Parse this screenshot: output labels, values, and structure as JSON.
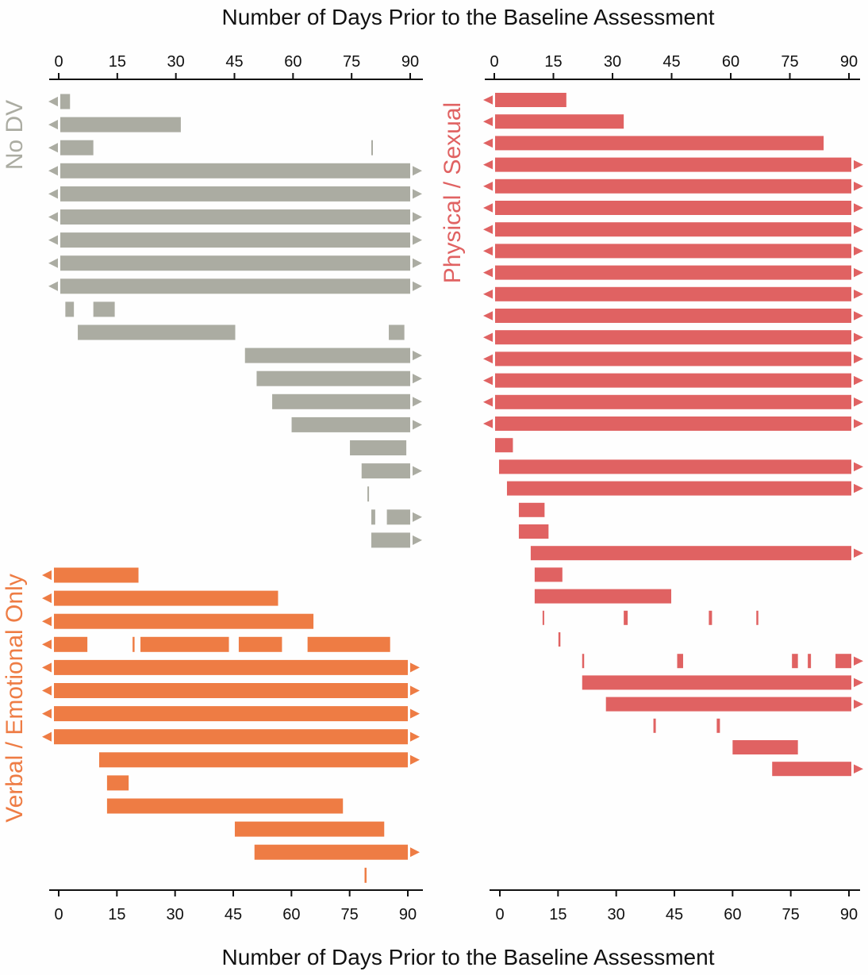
{
  "chart_data": {
    "type": "bar",
    "title_top": "Number of Days Prior to the Baseline Assessment",
    "title_bottom": "Number of Days Prior to the Baseline Assessment",
    "xlim": [
      0,
      90
    ],
    "ticks": [
      0,
      15,
      30,
      45,
      60,
      75,
      90
    ],
    "colors": {
      "no_dv": "#abaca2",
      "verbal": "#ee7c44",
      "physical": "#e06262"
    },
    "groups": [
      {
        "key": "no_dv",
        "label": "No DV",
        "color": "#abaca2",
        "participants": [
          {
            "segments": [
              [
                0,
                2.5
              ]
            ],
            "left_arrow": true,
            "right_arrow": false
          },
          {
            "segments": [
              [
                0,
                31
              ]
            ],
            "left_arrow": true,
            "right_arrow": false
          },
          {
            "segments": [
              [
                0,
                8.5
              ],
              [
                80,
                80.3
              ]
            ],
            "left_arrow": true,
            "right_arrow": false
          },
          {
            "segments": [
              [
                0,
                90
              ]
            ],
            "left_arrow": true,
            "right_arrow": true
          },
          {
            "segments": [
              [
                0,
                90
              ]
            ],
            "left_arrow": true,
            "right_arrow": true
          },
          {
            "segments": [
              [
                0,
                90
              ]
            ],
            "left_arrow": true,
            "right_arrow": true
          },
          {
            "segments": [
              [
                0,
                90
              ]
            ],
            "left_arrow": true,
            "right_arrow": true
          },
          {
            "segments": [
              [
                0,
                90
              ]
            ],
            "left_arrow": true,
            "right_arrow": true
          },
          {
            "segments": [
              [
                0,
                90
              ]
            ],
            "left_arrow": true,
            "right_arrow": true
          },
          {
            "segments": [
              [
                1.3,
                3.5
              ],
              [
                8.5,
                14
              ]
            ],
            "left_arrow": false,
            "right_arrow": false
          },
          {
            "segments": [
              [
                4.5,
                45
              ],
              [
                84.5,
                88.5
              ]
            ],
            "left_arrow": false,
            "right_arrow": false
          },
          {
            "segments": [
              [
                47.5,
                90
              ]
            ],
            "left_arrow": false,
            "right_arrow": true
          },
          {
            "segments": [
              [
                50.5,
                90
              ]
            ],
            "left_arrow": false,
            "right_arrow": true
          },
          {
            "segments": [
              [
                54.5,
                90
              ]
            ],
            "left_arrow": false,
            "right_arrow": true
          },
          {
            "segments": [
              [
                59.5,
                90
              ]
            ],
            "left_arrow": false,
            "right_arrow": true
          },
          {
            "segments": [
              [
                74.5,
                89
              ]
            ],
            "left_arrow": false,
            "right_arrow": false
          },
          {
            "segments": [
              [
                77.5,
                90
              ]
            ],
            "left_arrow": false,
            "right_arrow": true
          },
          {
            "segments": [
              [
                79,
                79.3
              ]
            ],
            "left_arrow": false,
            "right_arrow": false
          },
          {
            "segments": [
              [
                80,
                81
              ],
              [
                84,
                90
              ]
            ],
            "left_arrow": false,
            "right_arrow": true
          },
          {
            "segments": [
              [
                80,
                90
              ]
            ],
            "left_arrow": false,
            "right_arrow": true
          }
        ]
      },
      {
        "key": "verbal",
        "label": "Verbal / Emotional Only",
        "color": "#ee7c44",
        "participants": [
          {
            "segments": [
              [
                0,
                21.5
              ]
            ],
            "left_arrow": true,
            "right_arrow": false
          },
          {
            "segments": [
              [
                0,
                57
              ]
            ],
            "left_arrow": true,
            "right_arrow": false
          },
          {
            "segments": [
              [
                0,
                66
              ]
            ],
            "left_arrow": true,
            "right_arrow": false
          },
          {
            "segments": [
              [
                0,
                8.5
              ],
              [
                20,
                20.5
              ],
              [
                22,
                44.5
              ],
              [
                47,
                58
              ],
              [
                64.5,
                85.5
              ]
            ],
            "left_arrow": true,
            "right_arrow": false
          },
          {
            "segments": [
              [
                0,
                90
              ]
            ],
            "left_arrow": true,
            "right_arrow": true
          },
          {
            "segments": [
              [
                0,
                90
              ]
            ],
            "left_arrow": true,
            "right_arrow": true
          },
          {
            "segments": [
              [
                0,
                90
              ]
            ],
            "left_arrow": true,
            "right_arrow": true
          },
          {
            "segments": [
              [
                0,
                90
              ]
            ],
            "left_arrow": true,
            "right_arrow": true
          },
          {
            "segments": [
              [
                11.5,
                90
              ]
            ],
            "left_arrow": false,
            "right_arrow": true
          },
          {
            "segments": [
              [
                13.5,
                19
              ]
            ],
            "left_arrow": false,
            "right_arrow": false
          },
          {
            "segments": [
              [
                13.5,
                73.5
              ]
            ],
            "left_arrow": false,
            "right_arrow": false
          },
          {
            "segments": [
              [
                46,
                84
              ]
            ],
            "left_arrow": false,
            "right_arrow": false
          },
          {
            "segments": [
              [
                51,
                90
              ]
            ],
            "left_arrow": false,
            "right_arrow": true
          },
          {
            "segments": [
              [
                79,
                79.5
              ]
            ],
            "left_arrow": false,
            "right_arrow": false
          }
        ]
      },
      {
        "key": "physical",
        "label": "Physical / Sexual",
        "color": "#e06262",
        "participants": [
          {
            "segments": [
              [
                0,
                18
              ]
            ],
            "left_arrow": true,
            "right_arrow": false
          },
          {
            "segments": [
              [
                0,
                32.5
              ]
            ],
            "left_arrow": true,
            "right_arrow": false
          },
          {
            "segments": [
              [
                0,
                83
              ]
            ],
            "left_arrow": true,
            "right_arrow": false
          },
          {
            "segments": [
              [
                0,
                90
              ]
            ],
            "left_arrow": true,
            "right_arrow": true
          },
          {
            "segments": [
              [
                0,
                90
              ]
            ],
            "left_arrow": true,
            "right_arrow": true
          },
          {
            "segments": [
              [
                0,
                90
              ]
            ],
            "left_arrow": true,
            "right_arrow": true
          },
          {
            "segments": [
              [
                0,
                90
              ]
            ],
            "left_arrow": true,
            "right_arrow": true
          },
          {
            "segments": [
              [
                0,
                90
              ]
            ],
            "left_arrow": true,
            "right_arrow": true
          },
          {
            "segments": [
              [
                0,
                90
              ]
            ],
            "left_arrow": true,
            "right_arrow": true
          },
          {
            "segments": [
              [
                0,
                90
              ]
            ],
            "left_arrow": true,
            "right_arrow": true
          },
          {
            "segments": [
              [
                0,
                90
              ]
            ],
            "left_arrow": true,
            "right_arrow": true
          },
          {
            "segments": [
              [
                0,
                90
              ]
            ],
            "left_arrow": true,
            "right_arrow": true
          },
          {
            "segments": [
              [
                0,
                90
              ]
            ],
            "left_arrow": true,
            "right_arrow": true
          },
          {
            "segments": [
              [
                0,
                90
              ]
            ],
            "left_arrow": true,
            "right_arrow": true
          },
          {
            "segments": [
              [
                0,
                90
              ]
            ],
            "left_arrow": true,
            "right_arrow": true
          },
          {
            "segments": [
              [
                0,
                90
              ]
            ],
            "left_arrow": true,
            "right_arrow": true
          },
          {
            "segments": [
              [
                0,
                4.5
              ]
            ],
            "left_arrow": false,
            "right_arrow": false
          },
          {
            "segments": [
              [
                1,
                90
              ]
            ],
            "left_arrow": false,
            "right_arrow": true
          },
          {
            "segments": [
              [
                3,
                90
              ]
            ],
            "left_arrow": false,
            "right_arrow": true
          },
          {
            "segments": [
              [
                6,
                12.5
              ]
            ],
            "left_arrow": false,
            "right_arrow": false
          },
          {
            "segments": [
              [
                6,
                13.5
              ]
            ],
            "left_arrow": false,
            "right_arrow": false
          },
          {
            "segments": [
              [
                9,
                90
              ]
            ],
            "left_arrow": false,
            "right_arrow": true
          },
          {
            "segments": [
              [
                10,
                17
              ]
            ],
            "left_arrow": false,
            "right_arrow": false
          },
          {
            "segments": [
              [
                10,
                44.5
              ]
            ],
            "left_arrow": false,
            "right_arrow": false
          },
          {
            "segments": [
              [
                12,
                12.3
              ],
              [
                32.5,
                33.5
              ],
              [
                54,
                54.8
              ],
              [
                66,
                66.5
              ]
            ],
            "left_arrow": false,
            "right_arrow": false
          },
          {
            "segments": [
              [
                16,
                16.5
              ]
            ],
            "left_arrow": false,
            "right_arrow": false
          },
          {
            "segments": [
              [
                22,
                22.5
              ],
              [
                46,
                47.5
              ],
              [
                75,
                76.5
              ],
              [
                79,
                79.8
              ],
              [
                86,
                90
              ]
            ],
            "left_arrow": false,
            "right_arrow": true
          },
          {
            "segments": [
              [
                22,
                90
              ]
            ],
            "left_arrow": false,
            "right_arrow": true
          },
          {
            "segments": [
              [
                28,
                90
              ]
            ],
            "left_arrow": false,
            "right_arrow": true
          },
          {
            "segments": [
              [
                40,
                40.6
              ],
              [
                56,
                56.8
              ]
            ],
            "left_arrow": false,
            "right_arrow": false
          },
          {
            "segments": [
              [
                60,
                76.5
              ]
            ],
            "left_arrow": false,
            "right_arrow": false
          },
          {
            "segments": [
              [
                70,
                90
              ]
            ],
            "left_arrow": false,
            "right_arrow": true
          }
        ]
      }
    ]
  }
}
